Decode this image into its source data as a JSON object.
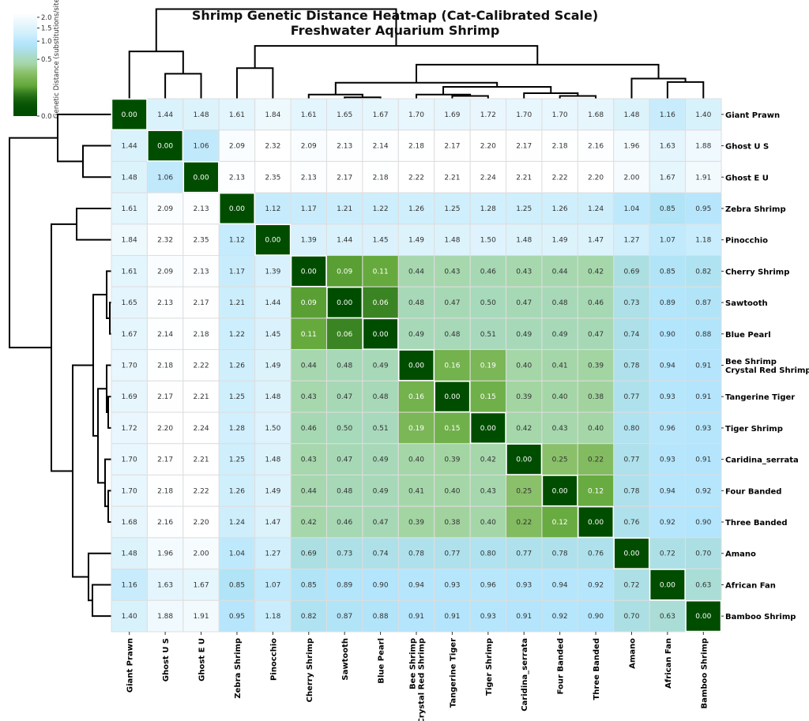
{
  "chart_data": {
    "type": "heatmap",
    "title": "Shrimp Genetic Distance Heatmap (Cat-Calibrated Scale)",
    "subtitle": "Freshwater Aquarium Shrimp",
    "colorbar": {
      "label": "Genetic Distance (substitutions/site)",
      "ticks": [
        0.0,
        0.5,
        1.0,
        1.5,
        2.0
      ],
      "tick_labels": [
        "0.0",
        "0.5",
        "1.0",
        "1.5",
        "2.0"
      ],
      "colors": [
        "#004d00",
        "#63a83a",
        "#a5d6a7",
        "#b3e5fc",
        "#ffffff"
      ]
    },
    "dendrograms": "row and column (clustered)",
    "labels": [
      "Giant Prawn",
      "Ghost U S",
      "Ghost E U",
      "Zebra Shrimp",
      "Pinocchio",
      "Cherry Shrimp",
      "Sawtooth",
      "Blue Pearl",
      "Bee Shrimp\nCrystal Red Shrimp",
      "Tangerine Tiger",
      "Tiger Shrimp",
      "Caridina_serrata",
      "Four Banded",
      "Three Banded",
      "Amano",
      "African Fan",
      "Bamboo Shrimp"
    ],
    "values": [
      [
        0.0,
        1.44,
        1.48,
        1.61,
        1.84,
        1.61,
        1.65,
        1.67,
        1.7,
        1.69,
        1.72,
        1.7,
        1.7,
        1.68,
        1.48,
        1.16,
        1.4
      ],
      [
        1.44,
        0.0,
        1.06,
        2.09,
        2.32,
        2.09,
        2.13,
        2.14,
        2.18,
        2.17,
        2.2,
        2.17,
        2.18,
        2.16,
        1.96,
        1.63,
        1.88
      ],
      [
        1.48,
        1.06,
        0.0,
        2.13,
        2.35,
        2.13,
        2.17,
        2.18,
        2.22,
        2.21,
        2.24,
        2.21,
        2.22,
        2.2,
        2.0,
        1.67,
        1.91
      ],
      [
        1.61,
        2.09,
        2.13,
        0.0,
        1.12,
        1.17,
        1.21,
        1.22,
        1.26,
        1.25,
        1.28,
        1.25,
        1.26,
        1.24,
        1.04,
        0.85,
        0.95
      ],
      [
        1.84,
        2.32,
        2.35,
        1.12,
        0.0,
        1.39,
        1.44,
        1.45,
        1.49,
        1.48,
        1.5,
        1.48,
        1.49,
        1.47,
        1.27,
        1.07,
        1.18
      ],
      [
        1.61,
        2.09,
        2.13,
        1.17,
        1.39,
        0.0,
        0.09,
        0.11,
        0.44,
        0.43,
        0.46,
        0.43,
        0.44,
        0.42,
        0.69,
        0.85,
        0.82
      ],
      [
        1.65,
        2.13,
        2.17,
        1.21,
        1.44,
        0.09,
        0.0,
        0.06,
        0.48,
        0.47,
        0.5,
        0.47,
        0.48,
        0.46,
        0.73,
        0.89,
        0.87
      ],
      [
        1.67,
        2.14,
        2.18,
        1.22,
        1.45,
        0.11,
        0.06,
        0.0,
        0.49,
        0.48,
        0.51,
        0.49,
        0.49,
        0.47,
        0.74,
        0.9,
        0.88
      ],
      [
        1.7,
        2.18,
        2.22,
        1.26,
        1.49,
        0.44,
        0.48,
        0.49,
        0.0,
        0.16,
        0.19,
        0.4,
        0.41,
        0.39,
        0.78,
        0.94,
        0.91
      ],
      [
        1.69,
        2.17,
        2.21,
        1.25,
        1.48,
        0.43,
        0.47,
        0.48,
        0.16,
        0.0,
        0.15,
        0.39,
        0.4,
        0.38,
        0.77,
        0.93,
        0.91
      ],
      [
        1.72,
        2.2,
        2.24,
        1.28,
        1.5,
        0.46,
        0.5,
        0.51,
        0.19,
        0.15,
        0.0,
        0.42,
        0.43,
        0.4,
        0.8,
        0.96,
        0.93
      ],
      [
        1.7,
        2.17,
        2.21,
        1.25,
        1.48,
        0.43,
        0.47,
        0.49,
        0.4,
        0.39,
        0.42,
        0.0,
        0.25,
        0.22,
        0.77,
        0.93,
        0.91
      ],
      [
        1.7,
        2.18,
        2.22,
        1.26,
        1.49,
        0.44,
        0.48,
        0.49,
        0.41,
        0.4,
        0.43,
        0.25,
        0.0,
        0.12,
        0.78,
        0.94,
        0.92
      ],
      [
        1.68,
        2.16,
        2.2,
        1.24,
        1.47,
        0.42,
        0.46,
        0.47,
        0.39,
        0.38,
        0.4,
        0.22,
        0.12,
        0.0,
        0.76,
        0.92,
        0.9
      ],
      [
        1.48,
        1.96,
        2.0,
        1.04,
        1.27,
        0.69,
        0.73,
        0.74,
        0.78,
        0.77,
        0.8,
        0.77,
        0.78,
        0.76,
        0.0,
        0.72,
        0.7
      ],
      [
        1.16,
        1.63,
        1.67,
        0.85,
        1.07,
        0.85,
        0.89,
        0.9,
        0.94,
        0.93,
        0.96,
        0.93,
        0.94,
        0.92,
        0.72,
        0.0,
        0.63
      ],
      [
        1.4,
        1.88,
        1.91,
        0.95,
        1.18,
        0.82,
        0.87,
        0.88,
        0.91,
        0.91,
        0.93,
        0.91,
        0.92,
        0.9,
        0.7,
        0.63,
        0.0
      ]
    ]
  }
}
